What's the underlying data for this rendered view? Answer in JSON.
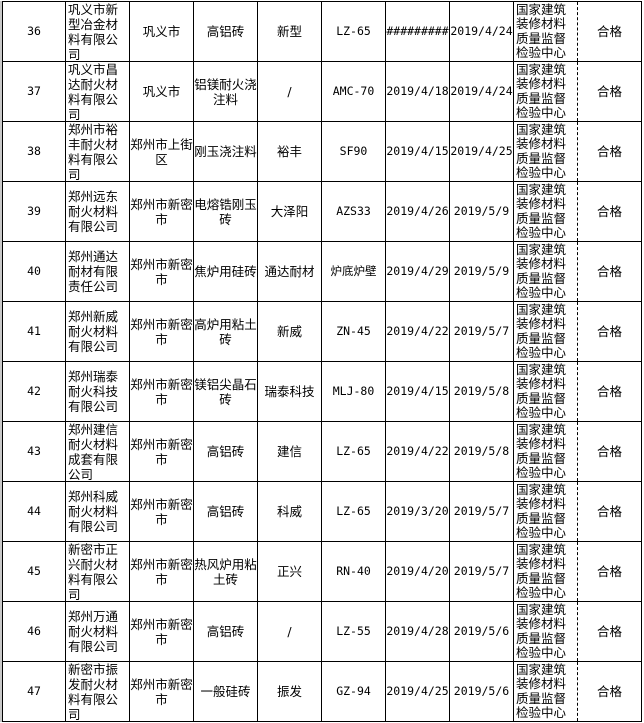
{
  "rows": [
    {
      "no": "36",
      "company": "巩义市新型冶金材料有限公司",
      "city": "巩义市",
      "product": "高铝砖",
      "brand": "新型",
      "model": "LZ-65",
      "prod_date": "#########",
      "test_date": "2019/4/24",
      "org": "国家建筑装修材料质量监督检验中心",
      "result": "合格"
    },
    {
      "no": "37",
      "company": "巩义市昌达耐火材料有限公司",
      "city": "巩义市",
      "product": "铝镁耐火浇注料",
      "brand": "/",
      "model": "AMC-70",
      "prod_date": "2019/4/18",
      "test_date": "2019/4/24",
      "org": "国家建筑装修材料质量监督检验中心",
      "result": "合格"
    },
    {
      "no": "38",
      "company": "郑州市裕丰耐火材料有限公司",
      "city": "郑州市上街区",
      "product": "刚玉浇注料",
      "brand": "裕丰",
      "model": "SF90",
      "prod_date": "2019/4/15",
      "test_date": "2019/4/25",
      "org": "国家建筑装修材料质量监督检验中心",
      "result": "合格"
    },
    {
      "no": "39",
      "company": "郑州远东耐火材料有限公司",
      "city": "郑州市新密市",
      "product": "电熔锆刚玉砖",
      "brand": "大泽阳",
      "model": "AZS33",
      "prod_date": "2019/4/26",
      "test_date": "2019/5/9",
      "org": "国家建筑装修材料质量监督检验中心",
      "result": "合格"
    },
    {
      "no": "40",
      "company": "郑州通达耐材有限责任公司",
      "city": "郑州市新密市",
      "product": "焦炉用硅砖",
      "brand": "通达耐材",
      "model": "炉底炉壁",
      "prod_date": "2019/4/29",
      "test_date": "2019/5/9",
      "org": "国家建筑装修材料质量监督检验中心",
      "result": "合格"
    },
    {
      "no": "41",
      "company": "郑州新威耐火材料有限公司",
      "city": "郑州市新密市",
      "product": "高炉用粘土砖",
      "brand": "新威",
      "model": "ZN-45",
      "prod_date": "2019/4/22",
      "test_date": "2019/5/7",
      "org": "国家建筑装修材料质量监督检验中心",
      "result": "合格"
    },
    {
      "no": "42",
      "company": "郑州瑞泰耐火科技有限公司",
      "city": "郑州市新密市",
      "product": "镁铝尖晶石砖",
      "brand": "瑞泰科技",
      "model": "MLJ-80",
      "prod_date": "2019/4/15",
      "test_date": "2019/5/8",
      "org": "国家建筑装修材料质量监督检验中心",
      "result": "合格"
    },
    {
      "no": "43",
      "company": "郑州建信耐火材料成套有限公司",
      "city": "郑州市新密市",
      "product": "高铝砖",
      "brand": "建信",
      "model": "LZ-65",
      "prod_date": "2019/4/22",
      "test_date": "2019/5/8",
      "org": "国家建筑装修材料质量监督检验中心",
      "result": "合格"
    },
    {
      "no": "44",
      "company": "郑州科威耐火材料有限公司",
      "city": "郑州市新密市",
      "product": "高铝砖",
      "brand": "科威",
      "model": "LZ-65",
      "prod_date": "2019/3/20",
      "test_date": "2019/5/7",
      "org": "国家建筑装修材料质量监督检验中心",
      "result": "合格"
    },
    {
      "no": "45",
      "company": "新密市正兴耐火材料有限公司",
      "city": "郑州市新密市",
      "product": "热风炉用粘土砖",
      "brand": "正兴",
      "model": "RN-40",
      "prod_date": "2019/4/20",
      "test_date": "2019/5/7",
      "org": "国家建筑装修材料质量监督检验中心",
      "result": "合格"
    },
    {
      "no": "46",
      "company": "郑州万通耐火材料有限公司",
      "city": "郑州市新密市",
      "product": "高铝砖",
      "brand": "/",
      "model": "LZ-55",
      "prod_date": "2019/4/28",
      "test_date": "2019/5/6",
      "org": "国家建筑装修材料质量监督检验中心",
      "result": "合格"
    },
    {
      "no": "47",
      "company": "新密市振发耐火材料有限公司",
      "city": "郑州市新密市",
      "product": "一般硅砖",
      "brand": "振发",
      "model": "GZ-94",
      "prod_date": "2019/4/25",
      "test_date": "2019/5/6",
      "org": "国家建筑装修材料质量监督检验中心",
      "result": "合格"
    }
  ]
}
